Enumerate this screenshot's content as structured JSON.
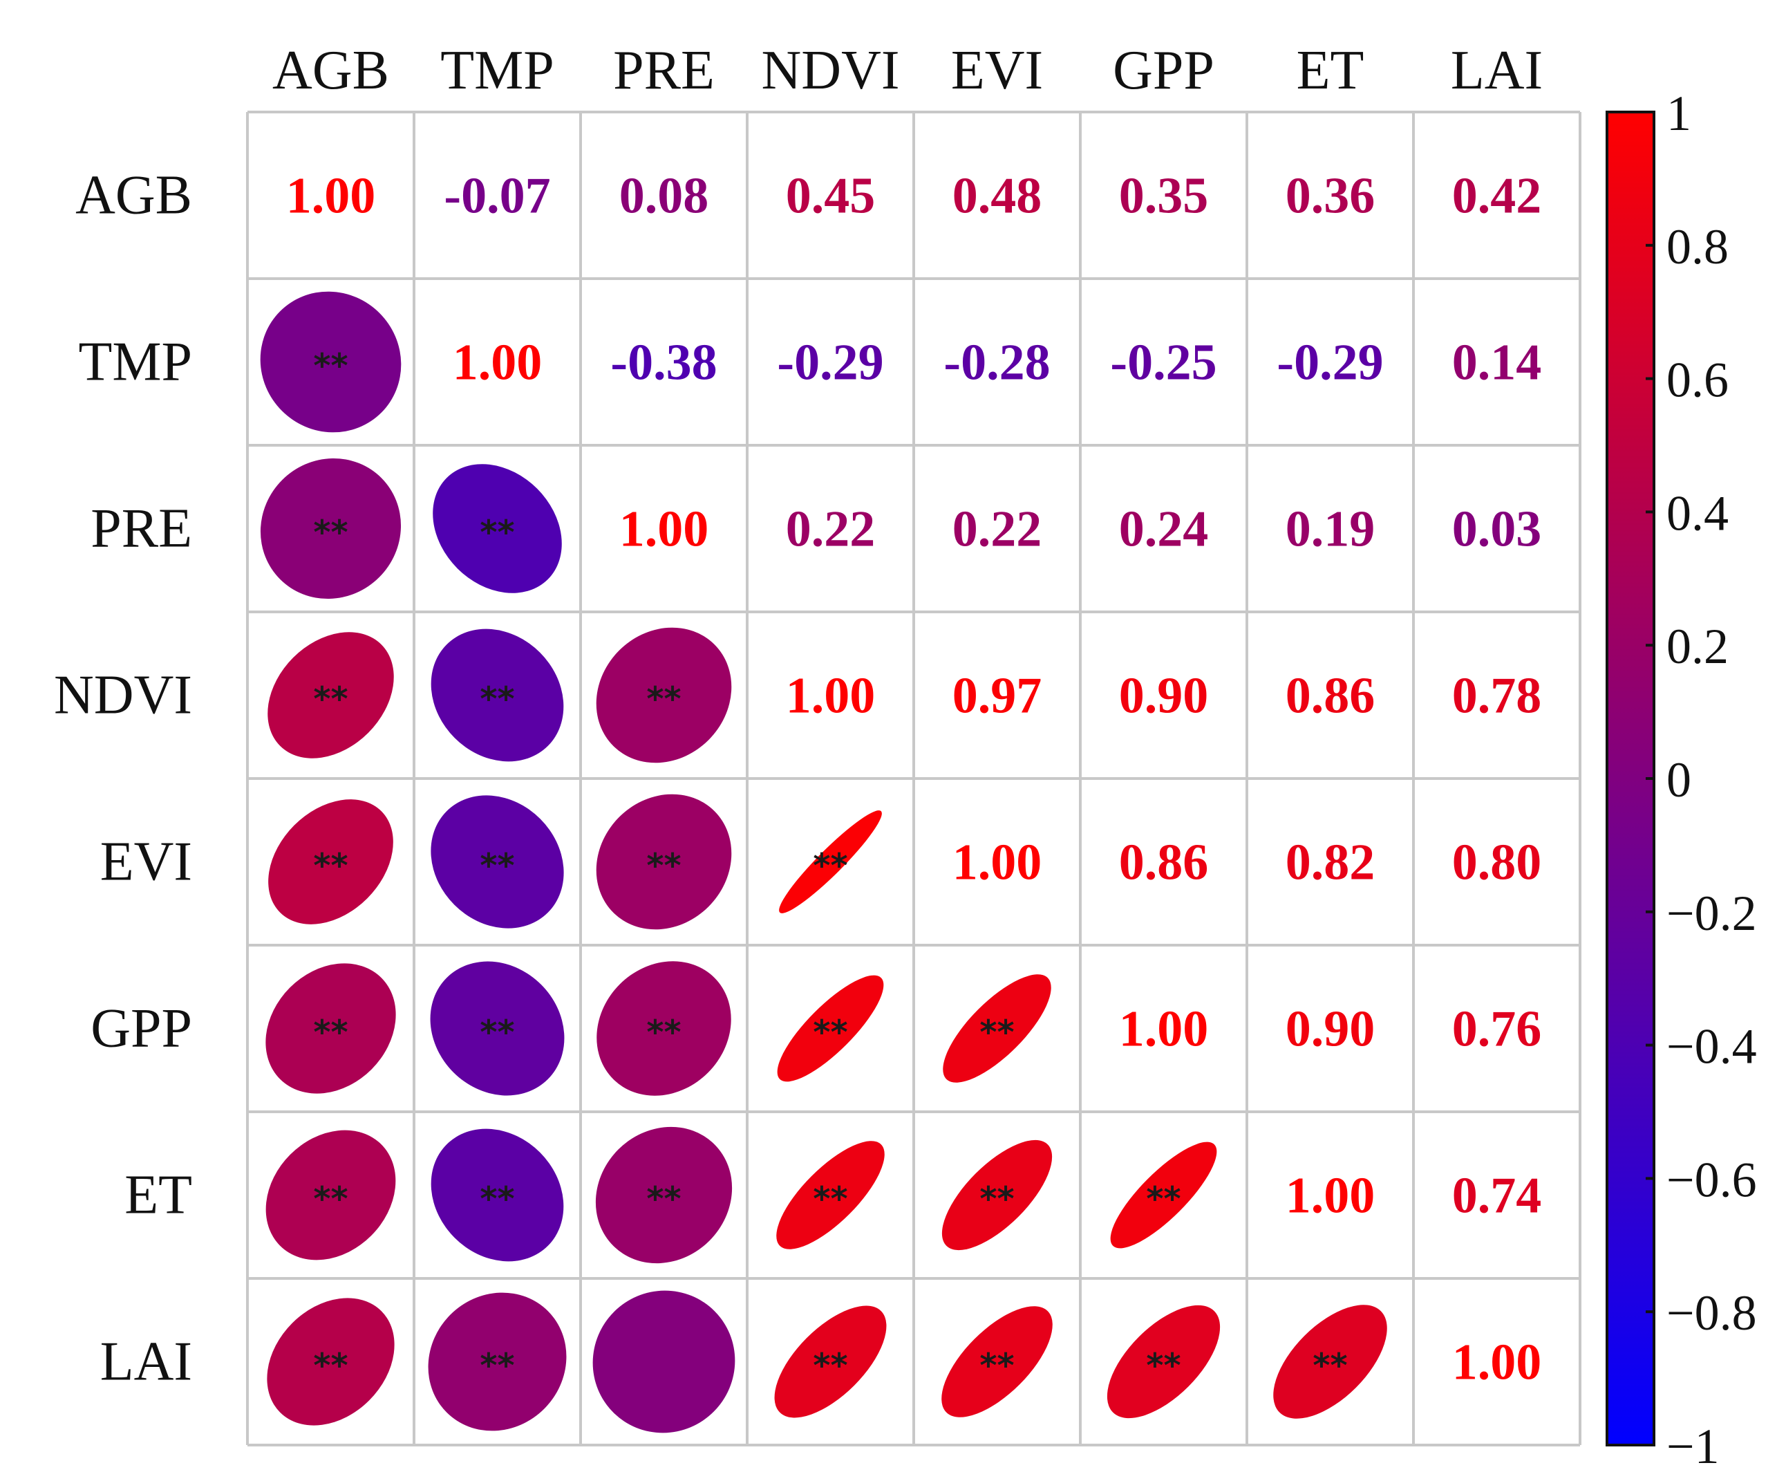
{
  "chart_data": {
    "type": "heatmap",
    "title": "",
    "variables": [
      "AGB",
      "TMP",
      "PRE",
      "NDVI",
      "EVI",
      "GPP",
      "ET",
      "LAI"
    ],
    "matrix": [
      [
        1.0,
        -0.07,
        0.08,
        0.45,
        0.48,
        0.35,
        0.36,
        0.42
      ],
      [
        -0.07,
        1.0,
        -0.38,
        -0.29,
        -0.28,
        -0.25,
        -0.29,
        0.14
      ],
      [
        0.08,
        -0.38,
        1.0,
        0.22,
        0.22,
        0.24,
        0.19,
        0.03
      ],
      [
        0.45,
        -0.29,
        0.22,
        1.0,
        0.97,
        0.9,
        0.86,
        0.78
      ],
      [
        0.48,
        -0.28,
        0.22,
        0.97,
        1.0,
        0.86,
        0.82,
        0.8
      ],
      [
        0.35,
        -0.25,
        0.24,
        0.9,
        0.86,
        1.0,
        0.9,
        0.76
      ],
      [
        0.36,
        -0.29,
        0.19,
        0.86,
        0.82,
        0.9,
        1.0,
        0.74
      ],
      [
        0.42,
        0.14,
        0.03,
        0.78,
        0.8,
        0.76,
        0.74,
        1.0
      ]
    ],
    "value_labels": [
      [
        "1.00",
        "-0.07",
        "0.08",
        "0.45",
        "0.48",
        "0.35",
        "0.36",
        "0.42"
      ],
      [
        "",
        "1.00",
        "-0.38",
        "-0.29",
        "-0.28",
        "-0.25",
        "-0.29",
        "0.14"
      ],
      [
        "",
        "",
        "1.00",
        "0.22",
        "0.22",
        "0.24",
        "0.19",
        "0.03"
      ],
      [
        "",
        "",
        "",
        "1.00",
        "0.97",
        "0.90",
        "0.86",
        "0.78"
      ],
      [
        "",
        "",
        "",
        "",
        "1.00",
        "0.86",
        "0.82",
        "0.80"
      ],
      [
        "",
        "",
        "",
        "",
        "",
        "1.00",
        "0.90",
        "0.76"
      ],
      [
        "",
        "",
        "",
        "",
        "",
        "",
        "1.00",
        "0.74"
      ],
      [
        "",
        "",
        "",
        "",
        "",
        "",
        "",
        "1.00"
      ]
    ],
    "significance": [
      [
        "",
        "",
        "",
        "",
        "",
        "",
        "",
        ""
      ],
      [
        "**",
        "",
        "",
        "",
        "",
        "",
        "",
        ""
      ],
      [
        "**",
        "**",
        "",
        "",
        "",
        "",
        "",
        ""
      ],
      [
        "**",
        "**",
        "**",
        "",
        "",
        "",
        "",
        ""
      ],
      [
        "**",
        "**",
        "**",
        "**",
        "",
        "",
        "",
        ""
      ],
      [
        "**",
        "**",
        "**",
        "**",
        "**",
        "",
        "",
        ""
      ],
      [
        "**",
        "**",
        "**",
        "**",
        "**",
        "**",
        "",
        ""
      ],
      [
        "**",
        "**",
        "",
        "**",
        "**",
        "**",
        "**",
        ""
      ]
    ],
    "upper_triangle": "numbers",
    "lower_triangle": "ellipses",
    "colorbar": {
      "range": [
        -1,
        1
      ],
      "ticks": [
        1,
        0.8,
        0.6,
        0.4,
        0.2,
        0,
        -0.2,
        -0.4,
        -0.6,
        -0.8,
        -1
      ],
      "tick_labels": [
        "1",
        "0.8",
        "0.6",
        "0.4",
        "0.2",
        "0",
        "−0.2",
        "−0.4",
        "−0.6",
        "−0.8",
        "−1"
      ],
      "colors": {
        "low": "#0000ff",
        "mid": "#800080",
        "high": "#ff0000"
      }
    },
    "grid_color": "#c8c8c8"
  }
}
